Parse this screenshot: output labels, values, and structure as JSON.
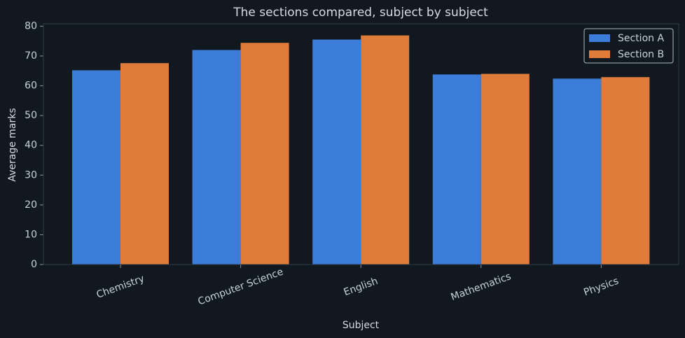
{
  "chart_data": {
    "type": "bar",
    "title": "The sections compared, subject by subject",
    "x_label": "Subject",
    "y_label": "Average marks",
    "categories": [
      "Chemistry",
      "Computer Science",
      "English",
      "Mathematics",
      "Physics"
    ],
    "series": [
      {
        "name": "Section A",
        "color": "#3b7dd8",
        "values": [
          65.2,
          72.0,
          75.5,
          63.8,
          62.4
        ]
      },
      {
        "name": "Section B",
        "color": "#e07b39",
        "values": [
          67.6,
          74.4,
          76.9,
          64.0,
          62.9
        ]
      }
    ],
    "ylim": [
      0,
      80.8
    ],
    "yticks": [
      0,
      10,
      20,
      30,
      40,
      50,
      60,
      70,
      80
    ],
    "legend": "upper right"
  }
}
